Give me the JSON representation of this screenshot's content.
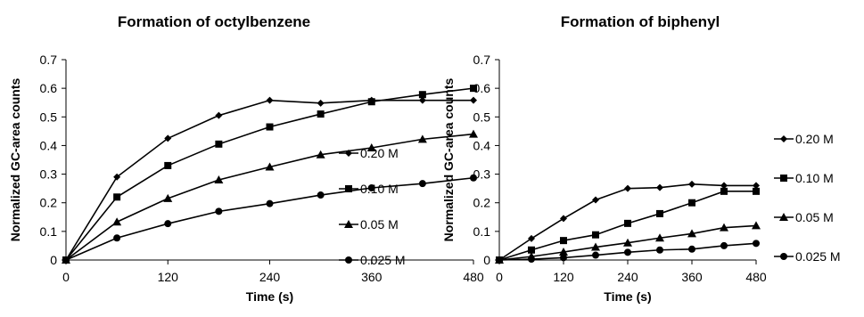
{
  "chart_data": [
    {
      "type": "line",
      "title": "Formation of octylbenzene",
      "xlabel": "Time (s)",
      "ylabel": "Normalized GC-area counts",
      "xlim": [
        0,
        480
      ],
      "ylim": [
        0,
        0.7
      ],
      "xticks": [
        "0",
        "120",
        "240",
        "360",
        "480"
      ],
      "yticks": [
        "0",
        "0.1",
        "0.2",
        "0.3",
        "0.4",
        "0.5",
        "0.6",
        "0.7"
      ],
      "grid": false,
      "legend": "right",
      "x": [
        0,
        60,
        120,
        180,
        240,
        300,
        360,
        420,
        480
      ],
      "series": [
        {
          "name": "0.20 M",
          "marker": "diamond",
          "values": [
            0,
            0.29,
            0.425,
            0.505,
            0.558,
            0.548,
            0.558,
            0.558,
            0.558
          ]
        },
        {
          "name": "0.10 M",
          "marker": "square",
          "values": [
            0,
            0.22,
            0.33,
            0.405,
            0.465,
            0.51,
            0.553,
            0.578,
            0.6
          ]
        },
        {
          "name": "0.05 M",
          "marker": "triangle",
          "values": [
            0,
            0.133,
            0.215,
            0.28,
            0.325,
            0.368,
            0.392,
            0.422,
            0.44
          ]
        },
        {
          "name": "0.025 M",
          "marker": "circle",
          "values": [
            0,
            0.077,
            0.127,
            0.17,
            0.197,
            0.227,
            0.252,
            0.267,
            0.287
          ]
        }
      ]
    },
    {
      "type": "line",
      "title": "Formation of biphenyl",
      "xlabel": "Time (s)",
      "ylabel": "Normalized GC-area counts",
      "xlim": [
        0,
        480
      ],
      "ylim": [
        0,
        0.7
      ],
      "xticks": [
        "0",
        "120",
        "240",
        "360",
        "480"
      ],
      "yticks": [
        "0",
        "0.1",
        "0.2",
        "0.3",
        "0.4",
        "0.5",
        "0.6",
        "0.7"
      ],
      "grid": false,
      "legend": "right",
      "x": [
        0,
        60,
        120,
        180,
        240,
        300,
        360,
        420,
        480
      ],
      "series": [
        {
          "name": "0.20 M",
          "marker": "diamond",
          "values": [
            0,
            0.075,
            0.145,
            0.21,
            0.25,
            0.253,
            0.265,
            0.26,
            0.26
          ]
        },
        {
          "name": "0.10 M",
          "marker": "square",
          "values": [
            0,
            0.035,
            0.068,
            0.088,
            0.128,
            0.162,
            0.2,
            0.24,
            0.24
          ]
        },
        {
          "name": "0.05 M",
          "marker": "triangle",
          "values": [
            0,
            0.012,
            0.028,
            0.045,
            0.06,
            0.077,
            0.092,
            0.113,
            0.12
          ]
        },
        {
          "name": "0.025 M",
          "marker": "circle",
          "values": [
            0,
            0.003,
            0.008,
            0.017,
            0.027,
            0.035,
            0.038,
            0.05,
            0.058
          ]
        }
      ]
    }
  ]
}
